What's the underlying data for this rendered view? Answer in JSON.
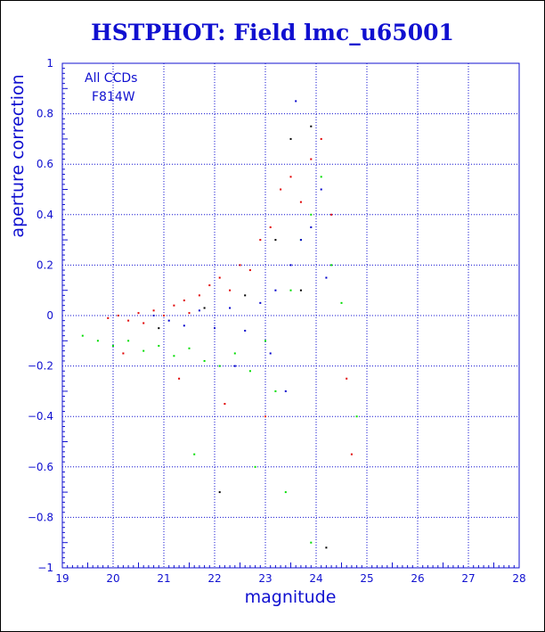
{
  "title": "HSTPHOT: Field lmc_u65001",
  "chart_data": {
    "type": "scatter",
    "title": "HSTPHOT: Field lmc_u65001",
    "xlabel": "magnitude",
    "ylabel": "aperture correction",
    "xlim": [
      19,
      28
    ],
    "ylim": [
      -1,
      1
    ],
    "x_ticks": [
      "19",
      "20",
      "21",
      "22",
      "23",
      "24",
      "25",
      "26",
      "27",
      "28"
    ],
    "y_ticks": [
      "−1",
      "−0.8",
      "−0.6",
      "−0.4",
      "−0.2",
      "0",
      "0.2",
      "0.4",
      "0.6",
      "0.8",
      "1"
    ],
    "grid": true,
    "annotations": [
      "All CCDs",
      "F814W"
    ],
    "colors": {
      "axis": "#1010d0",
      "grid": "#1010d0",
      "red": "#e00000",
      "green": "#00dd00",
      "blue": "#0000cc",
      "black": "#000000"
    },
    "series": [
      {
        "color": "red",
        "points": [
          [
            19.9,
            -0.01
          ],
          [
            20.1,
            0.0
          ],
          [
            20.3,
            -0.02
          ],
          [
            20.5,
            0.01
          ],
          [
            20.6,
            -0.03
          ],
          [
            20.8,
            0.02
          ],
          [
            21.0,
            0.0
          ],
          [
            21.2,
            0.04
          ],
          [
            21.4,
            0.06
          ],
          [
            21.5,
            0.01
          ],
          [
            21.7,
            0.08
          ],
          [
            21.9,
            0.12
          ],
          [
            22.1,
            0.15
          ],
          [
            22.3,
            0.1
          ],
          [
            22.5,
            0.2
          ],
          [
            22.7,
            0.18
          ],
          [
            22.9,
            0.3
          ],
          [
            23.1,
            0.35
          ],
          [
            23.3,
            0.5
          ],
          [
            23.5,
            0.55
          ],
          [
            23.7,
            0.45
          ],
          [
            23.9,
            0.62
          ],
          [
            24.1,
            0.7
          ],
          [
            24.3,
            0.4
          ],
          [
            20.2,
            -0.15
          ],
          [
            21.3,
            -0.25
          ],
          [
            22.2,
            -0.35
          ],
          [
            23.0,
            -0.4
          ],
          [
            24.6,
            -0.25
          ],
          [
            24.7,
            -0.55
          ]
        ]
      },
      {
        "color": "green",
        "points": [
          [
            19.4,
            -0.08
          ],
          [
            19.7,
            -0.1
          ],
          [
            20.0,
            -0.12
          ],
          [
            20.3,
            -0.1
          ],
          [
            20.6,
            -0.14
          ],
          [
            20.9,
            -0.12
          ],
          [
            21.2,
            -0.16
          ],
          [
            21.5,
            -0.13
          ],
          [
            21.8,
            -0.18
          ],
          [
            22.1,
            -0.2
          ],
          [
            22.4,
            -0.15
          ],
          [
            22.7,
            -0.22
          ],
          [
            23.0,
            -0.1
          ],
          [
            23.2,
            -0.3
          ],
          [
            23.5,
            0.1
          ],
          [
            23.7,
            0.3
          ],
          [
            23.9,
            0.4
          ],
          [
            24.1,
            0.55
          ],
          [
            24.3,
            0.2
          ],
          [
            24.5,
            0.05
          ],
          [
            21.6,
            -0.55
          ],
          [
            22.8,
            -0.6
          ],
          [
            23.4,
            -0.7
          ],
          [
            23.9,
            -0.9
          ],
          [
            24.8,
            -0.4
          ]
        ]
      },
      {
        "color": "blue",
        "points": [
          [
            20.8,
            0.0
          ],
          [
            21.1,
            -0.02
          ],
          [
            21.4,
            -0.04
          ],
          [
            21.7,
            0.02
          ],
          [
            22.0,
            -0.05
          ],
          [
            22.3,
            0.03
          ],
          [
            22.6,
            -0.06
          ],
          [
            22.9,
            0.05
          ],
          [
            23.2,
            0.1
          ],
          [
            23.5,
            0.2
          ],
          [
            23.7,
            0.3
          ],
          [
            23.9,
            0.35
          ],
          [
            24.1,
            0.5
          ],
          [
            23.4,
            -0.3
          ],
          [
            23.6,
            0.85
          ],
          [
            22.4,
            -0.2
          ],
          [
            23.1,
            -0.15
          ],
          [
            24.2,
            0.15
          ]
        ]
      },
      {
        "color": "black",
        "points": [
          [
            20.9,
            -0.05
          ],
          [
            21.8,
            0.03
          ],
          [
            22.6,
            0.08
          ],
          [
            23.2,
            0.3
          ],
          [
            23.5,
            0.7
          ],
          [
            23.9,
            0.75
          ],
          [
            24.2,
            -0.92
          ],
          [
            22.1,
            -0.7
          ],
          [
            23.7,
            0.1
          ]
        ]
      }
    ]
  }
}
